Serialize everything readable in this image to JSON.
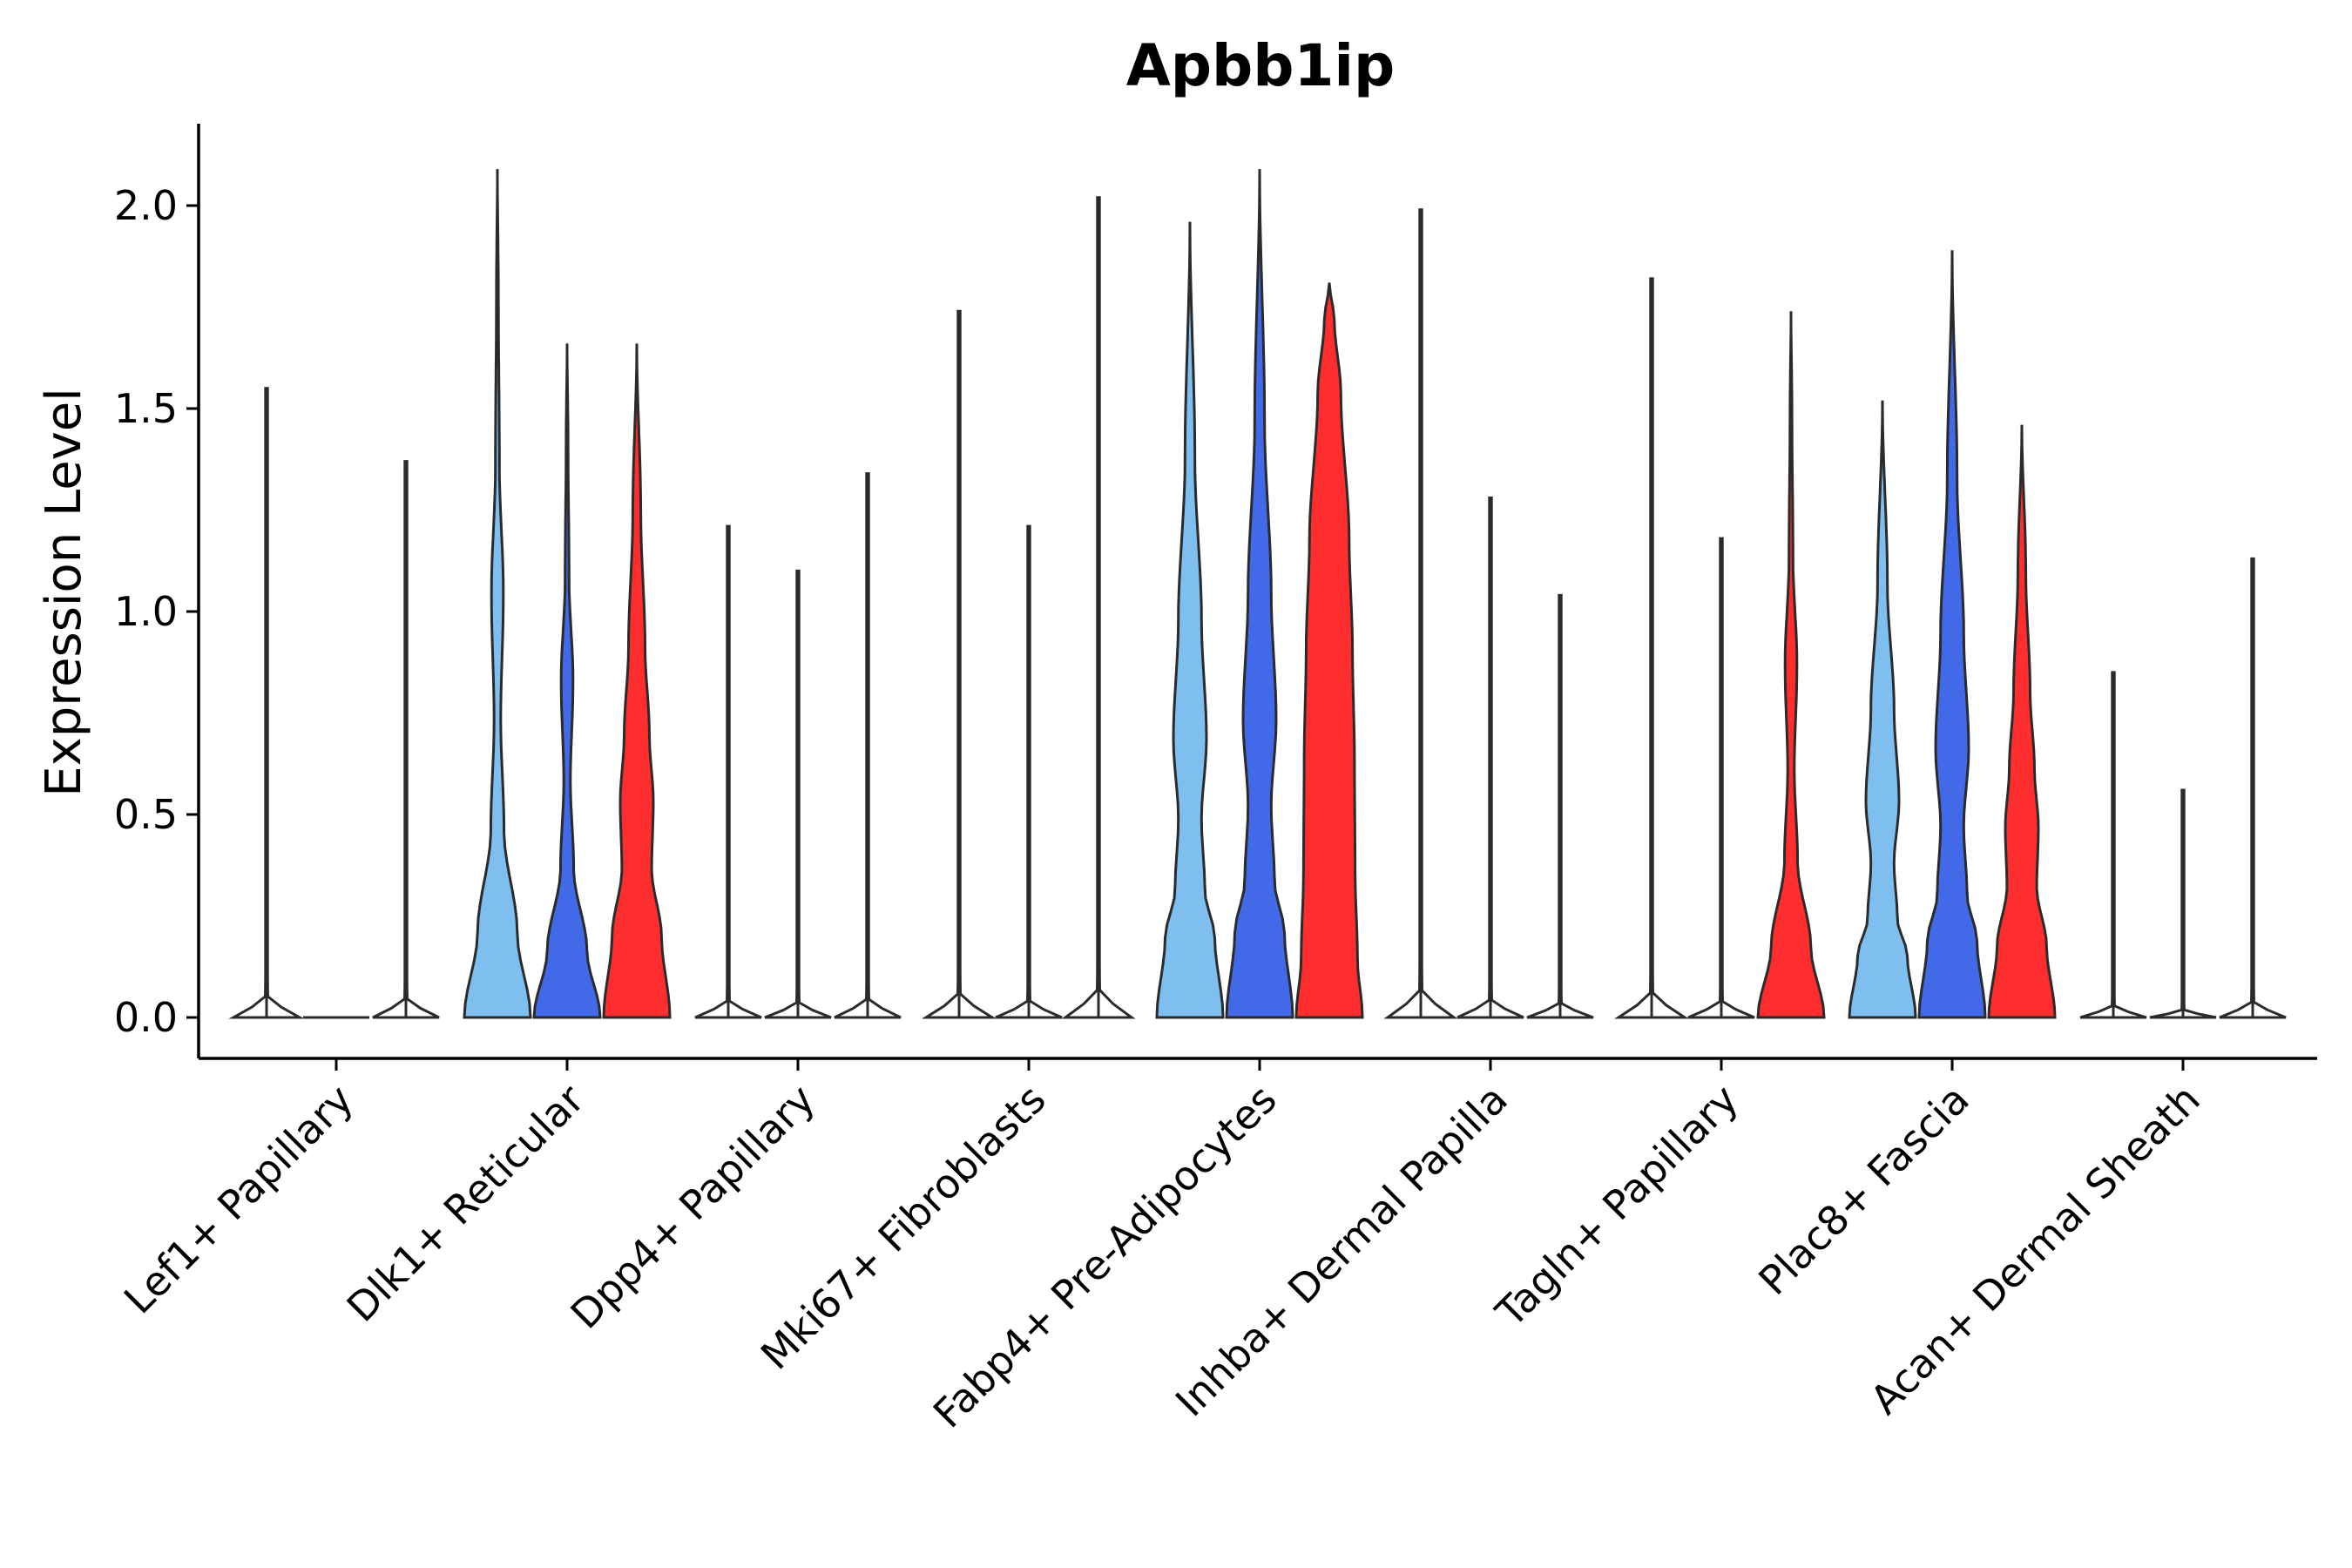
{
  "chart_data": {
    "type": "violin",
    "title": "Apbb1ip",
    "xlabel": "",
    "ylabel": "Expression Level",
    "ylim": [
      -0.105,
      2.2
    ],
    "yticks": [
      "0.0",
      "0.5",
      "1.0",
      "1.5",
      "2.0"
    ],
    "ytick_values": [
      0,
      0.5,
      1.0,
      1.5,
      2.0
    ],
    "categories": [
      "Lef1+ Papillary",
      "Dlk1+ Reticular",
      "Dpp4+ Papillary",
      "Mki67+ Fibroblasts",
      "Fabp4+ Pre-Adipocytes",
      "Inhba+ Dermal Papilla",
      "Tagln+ Papillary",
      "Plac8+ Fascia",
      "Acan+ Dermal Sheath"
    ],
    "series": [
      {
        "name": "group 1",
        "color": "#7fbfef"
      },
      {
        "name": "group 2",
        "color": "#4169e8"
      },
      {
        "name": "group 3",
        "color": "#ff2e2e"
      }
    ],
    "violins": [
      [
        {
          "max": 1.55,
          "profile": "spike"
        },
        {
          "max": 0.0,
          "profile": "spike"
        },
        {
          "max": 1.37,
          "profile": "spike"
        }
      ],
      [
        {
          "max": 2.09,
          "profile": "low"
        },
        {
          "max": 1.66,
          "profile": "low"
        },
        {
          "max": 1.66,
          "profile": "mid"
        }
      ],
      [
        {
          "max": 1.21,
          "profile": "spike"
        },
        {
          "max": 1.1,
          "profile": "spike"
        },
        {
          "max": 1.34,
          "profile": "spike"
        }
      ],
      [
        {
          "max": 1.74,
          "profile": "spike"
        },
        {
          "max": 1.21,
          "profile": "spike"
        },
        {
          "max": 2.02,
          "profile": "spike"
        }
      ],
      [
        {
          "max": 1.96,
          "profile": "wide"
        },
        {
          "max": 2.09,
          "profile": "wide"
        },
        {
          "max": 1.81,
          "profile": "full"
        }
      ],
      [
        {
          "max": 1.99,
          "profile": "spike"
        },
        {
          "max": 1.28,
          "profile": "spike"
        },
        {
          "max": 1.04,
          "profile": "spike"
        }
      ],
      [
        {
          "max": 1.82,
          "profile": "spike"
        },
        {
          "max": 1.18,
          "profile": "spike"
        },
        {
          "max": 1.74,
          "profile": "low"
        }
      ],
      [
        {
          "max": 1.52,
          "profile": "wide"
        },
        {
          "max": 1.89,
          "profile": "wide"
        },
        {
          "max": 1.46,
          "profile": "mid"
        }
      ],
      [
        {
          "max": 0.85,
          "profile": "spike"
        },
        {
          "max": 0.56,
          "profile": "spike"
        },
        {
          "max": 1.13,
          "profile": "spike"
        }
      ]
    ]
  }
}
